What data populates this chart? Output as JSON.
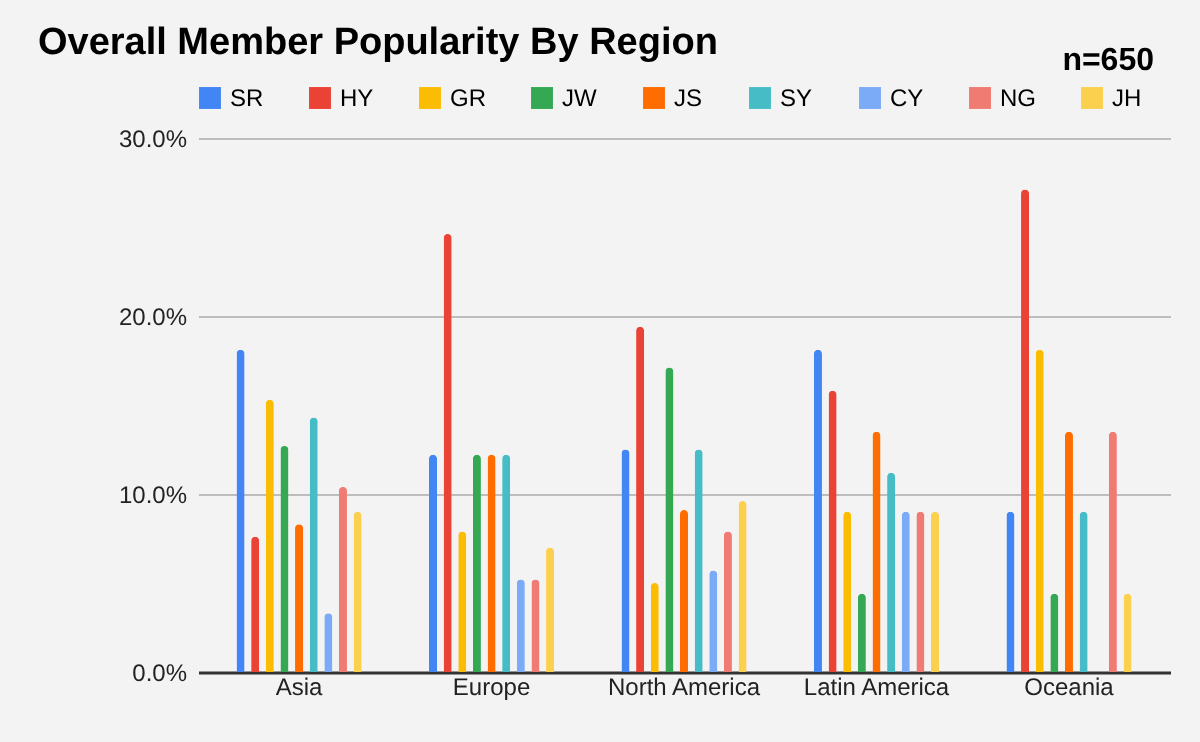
{
  "chart_data": {
    "type": "bar",
    "title": "Overall Member Popularity By Region",
    "annotations": [
      "n=650"
    ],
    "categories": [
      "Asia",
      "Europe",
      "North America",
      "Latin America",
      "Oceania"
    ],
    "series": [
      {
        "name": "SR",
        "color": "#4285f4",
        "values": [
          18.1,
          12.2,
          12.5,
          18.1,
          9.0
        ]
      },
      {
        "name": "HY",
        "color": "#ea4335",
        "values": [
          7.6,
          24.6,
          19.4,
          15.8,
          27.1
        ]
      },
      {
        "name": "GR",
        "color": "#fbbc04",
        "values": [
          15.3,
          7.9,
          5.0,
          9.0,
          18.1
        ]
      },
      {
        "name": "JW",
        "color": "#34a853",
        "values": [
          12.7,
          12.2,
          17.1,
          4.4,
          4.4
        ]
      },
      {
        "name": "JS",
        "color": "#ff6d01",
        "values": [
          8.3,
          12.2,
          9.1,
          13.5,
          13.5
        ]
      },
      {
        "name": "SY",
        "color": "#46bdc6",
        "values": [
          14.3,
          12.2,
          12.5,
          11.2,
          9.0
        ]
      },
      {
        "name": "CY",
        "color": "#7baaf7",
        "values": [
          3.3,
          5.2,
          5.7,
          9.0,
          0
        ]
      },
      {
        "name": "NG",
        "color": "#f07b72",
        "values": [
          10.4,
          5.2,
          7.9,
          9.0,
          13.5
        ]
      },
      {
        "name": "JH",
        "color": "#fcd04f",
        "values": [
          9.0,
          7.0,
          9.6,
          9.0,
          4.4
        ]
      }
    ],
    "ylim": [
      0,
      30
    ],
    "yticks": [
      {
        "value": 0,
        "label": "0.0%"
      },
      {
        "value": 10,
        "label": "10.0%"
      },
      {
        "value": 20,
        "label": "20.0%"
      },
      {
        "value": 30,
        "label": "30.0%"
      }
    ],
    "grid": "y",
    "legend": "top"
  }
}
